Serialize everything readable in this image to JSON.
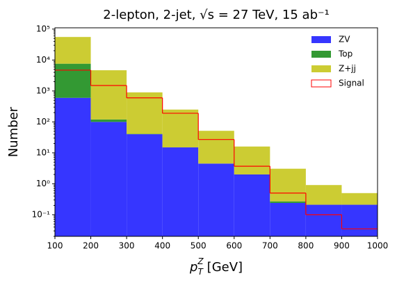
{
  "chart_data": {
    "type": "stacked_histogram",
    "title": "2-lepton, 2-jet, √s = 27 TeV, 15 ab⁻¹",
    "x_label": {
      "base": "p",
      "sub": "T",
      "sup": "Z",
      "unit": " [GeV]"
    },
    "y_label": "Number",
    "bins": [
      100,
      200,
      300,
      400,
      500,
      600,
      700,
      800,
      900,
      1000
    ],
    "series": [
      {
        "name": "ZV",
        "color": "#3636ff",
        "values": [
          600,
          100,
          40,
          15,
          4.5,
          2,
          0.24,
          0.21,
          0.21
        ]
      },
      {
        "name": "Top",
        "color": "#339933",
        "values": [
          7000,
          20,
          1,
          0,
          0,
          0,
          0.03,
          0,
          0
        ]
      },
      {
        "name": "Z+jj",
        "color": "#cccc33",
        "values": [
          48000,
          4550,
          860,
          235,
          47,
          14,
          2.8,
          0.7,
          0.29
        ]
      }
    ],
    "step_series": {
      "name": "Signal",
      "color": "#ff0000",
      "values": [
        4700,
        1500,
        600,
        190,
        27,
        3.7,
        0.5,
        0.1,
        0.035
      ]
    },
    "log_y": true,
    "legend": "upper right",
    "xlim": [
      100,
      1000
    ],
    "ylim": [
      0.02,
      110000
    ],
    "xticks": [
      100,
      200,
      300,
      400,
      500,
      600,
      700,
      800,
      900,
      1000
    ],
    "yticks": [
      {
        "value": 0.1,
        "label": "10⁻¹"
      },
      {
        "value": 1,
        "label": "10⁰"
      },
      {
        "value": 10,
        "label": "10¹"
      },
      {
        "value": 100,
        "label": "10²"
      },
      {
        "value": 1000,
        "label": "10³"
      },
      {
        "value": 10000,
        "label": "10⁴"
      },
      {
        "value": 100000,
        "label": "10⁵"
      }
    ]
  }
}
